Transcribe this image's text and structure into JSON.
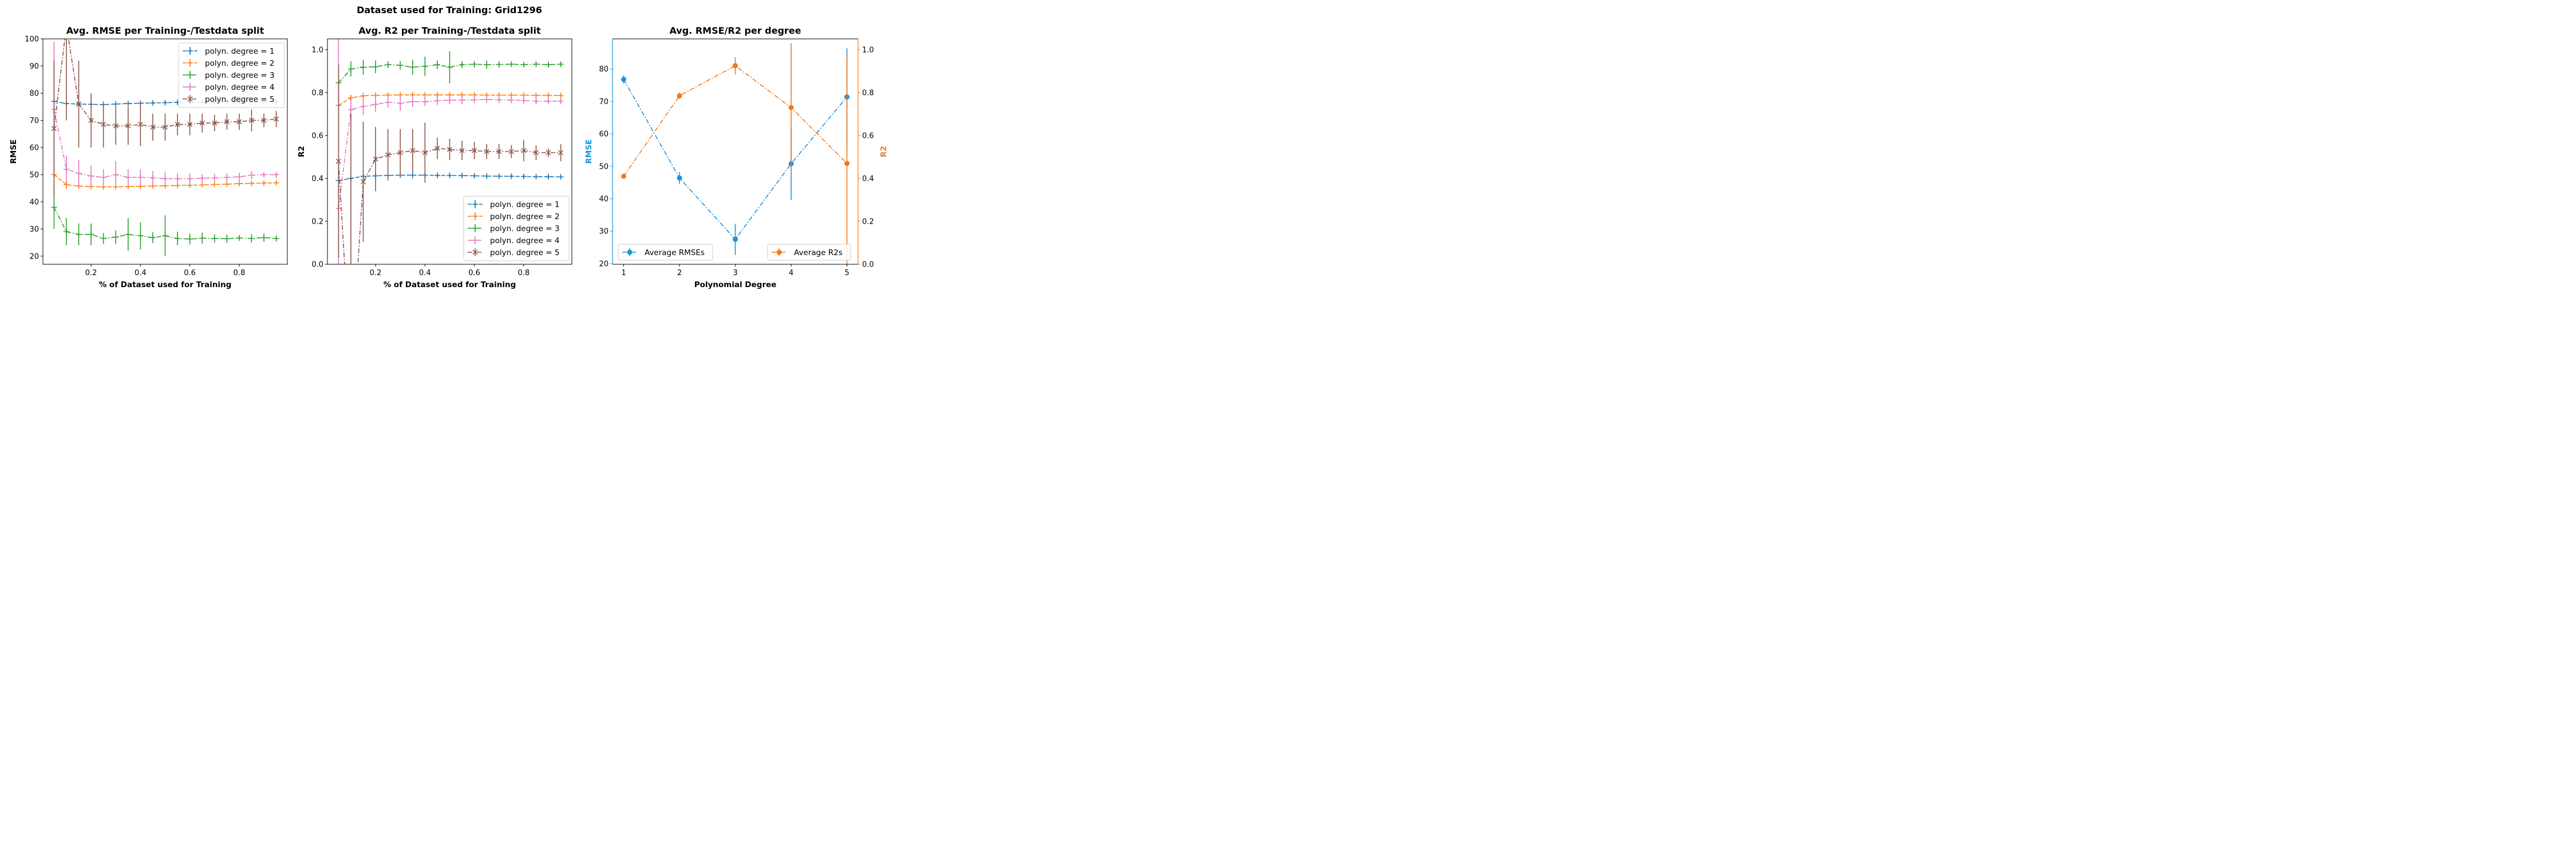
{
  "suptitle": "Dataset used for Training: Grid1296",
  "colors": {
    "degree1": "#1f77b4",
    "degree2": "#ff7f0e",
    "degree3": "#2ca02c",
    "degree4": "#e377c2",
    "degree5": "#8c564b",
    "rmse_axis": "#1c92e0",
    "r2_axis": "#f07a1a"
  },
  "chart_data": [
    {
      "type": "line",
      "title": "Avg. RMSE per Training-/Testdata split",
      "xlabel": "% of Dataset used for Training",
      "ylabel": "RMSE",
      "xlim": [
        0.005,
        0.995
      ],
      "ylim": [
        17,
        100
      ],
      "xticks": [
        0.2,
        0.4,
        0.6,
        0.8
      ],
      "xtick_labels": [
        "0.2",
        "0.4",
        "0.6",
        "0.8"
      ],
      "yticks": [
        20,
        30,
        40,
        50,
        60,
        70,
        80,
        90,
        100
      ],
      "ytick_labels": [
        "20",
        "30",
        "40",
        "50",
        "60",
        "70",
        "80",
        "90",
        "100"
      ],
      "legend_position": "top-right",
      "x": [
        0.05,
        0.1,
        0.15,
        0.2,
        0.25,
        0.3,
        0.35,
        0.4,
        0.45,
        0.5,
        0.55,
        0.6,
        0.65,
        0.7,
        0.75,
        0.8,
        0.85,
        0.9,
        0.95
      ],
      "series": [
        {
          "name": "polyn. degree = 1",
          "marker": "plus",
          "linestyle": "dashed",
          "values": [
            77,
            76.2,
            76,
            75.9,
            75.8,
            76,
            76.2,
            76.3,
            76.4,
            76.5,
            76.6,
            76.6,
            76.7,
            76.7,
            76.8,
            76.8,
            76.8,
            76.8,
            76.8
          ],
          "errors": [
            0.5,
            0.5,
            0.5,
            0.5,
            0.5,
            0.5,
            0.5,
            0.5,
            0.5,
            0.5,
            0.5,
            0.5,
            0.5,
            0.5,
            0.5,
            0.5,
            0.5,
            0.5,
            0.5
          ]
        },
        {
          "name": "polyn. degree = 2",
          "marker": "plus",
          "linestyle": "dashed",
          "values": [
            50,
            46.3,
            45.8,
            45.6,
            45.5,
            45.5,
            45.6,
            45.7,
            45.8,
            45.9,
            46,
            46.1,
            46.2,
            46.4,
            46.5,
            46.7,
            46.8,
            46.9,
            47
          ],
          "errors": [
            1,
            1.5,
            1,
            0.7,
            0.6,
            0.5,
            0.5,
            0.5,
            0.5,
            0.5,
            0.5,
            0.5,
            0.5,
            0.5,
            0.5,
            0.5,
            0.5,
            0.5,
            0.5
          ]
        },
        {
          "name": "polyn. degree = 3",
          "marker": "plus",
          "linestyle": "dashdot",
          "values": [
            38,
            29,
            28,
            28,
            26.5,
            27,
            28,
            27.5,
            26.8,
            27.5,
            26.5,
            26.3,
            26.6,
            26.5,
            26.4,
            26.7,
            26.5,
            26.8,
            26.5
          ],
          "errors": [
            8,
            5,
            4,
            4,
            2,
            2.5,
            6,
            5,
            2,
            7.5,
            2.5,
            2,
            2,
            1.5,
            1.5,
            1,
            1.5,
            1.5,
            1
          ]
        },
        {
          "name": "polyn. degree = 4",
          "marker": "plus",
          "linestyle": "dashdot",
          "values": [
            74,
            52,
            50.5,
            49.5,
            49,
            50,
            49,
            49,
            48.8,
            48.5,
            48.5,
            48.5,
            48.7,
            48.8,
            49,
            49.2,
            49.8,
            50,
            50
          ],
          "errors": [
            25,
            5,
            5,
            4,
            3,
            5,
            3,
            3,
            2.5,
            2.5,
            2,
            2,
            1.5,
            1.5,
            1.5,
            1.5,
            1.5,
            1,
            1
          ]
        },
        {
          "name": "polyn. degree = 5",
          "marker": "x",
          "linestyle": "dashdot",
          "values": [
            67,
            105,
            76,
            70,
            68.5,
            68,
            68,
            68.5,
            67.5,
            67.5,
            68.5,
            68.5,
            69,
            69,
            69.5,
            69.5,
            70,
            70,
            70.5
          ],
          "errors": [
            25,
            35,
            16,
            10,
            8.5,
            7,
            7,
            8,
            5,
            5,
            4,
            4,
            3.5,
            3,
            3,
            3,
            4,
            2.5,
            3
          ]
        }
      ]
    },
    {
      "type": "line",
      "title": "Avg. R2 per Training-/Testdata split",
      "xlabel": "% of Dataset used for Training",
      "ylabel": "R2",
      "xlim": [
        0.005,
        0.995
      ],
      "ylim": [
        0,
        1.05
      ],
      "xticks": [
        0.2,
        0.4,
        0.6,
        0.8
      ],
      "xtick_labels": [
        "0.2",
        "0.4",
        "0.6",
        "0.8"
      ],
      "yticks": [
        0,
        0.2,
        0.4,
        0.6,
        0.8,
        1.0
      ],
      "ytick_labels": [
        "0.0",
        "0.2",
        "0.4",
        "0.6",
        "0.8",
        "1.0"
      ],
      "legend_position": "bottom-right",
      "x": [
        0.05,
        0.1,
        0.15,
        0.2,
        0.25,
        0.3,
        0.35,
        0.4,
        0.45,
        0.5,
        0.55,
        0.6,
        0.65,
        0.7,
        0.75,
        0.8,
        0.85,
        0.9,
        0.95
      ],
      "series": [
        {
          "name": "polyn. degree = 1",
          "marker": "plus",
          "linestyle": "dashed",
          "values": [
            0.39,
            0.4,
            0.41,
            0.412,
            0.414,
            0.415,
            0.415,
            0.415,
            0.414,
            0.414,
            0.413,
            0.412,
            0.411,
            0.41,
            0.41,
            0.409,
            0.408,
            0.408,
            0.407
          ],
          "errors": [
            0.01,
            0.01,
            0.01,
            0.01,
            0.01,
            0.01,
            0.015,
            0.01,
            0.01,
            0.01,
            0.01,
            0.01,
            0.01,
            0.01,
            0.01,
            0.01,
            0.01,
            0.01,
            0.01
          ]
        },
        {
          "name": "polyn. degree = 2",
          "marker": "plus",
          "linestyle": "dashed",
          "values": [
            0.74,
            0.775,
            0.785,
            0.787,
            0.788,
            0.789,
            0.789,
            0.789,
            0.789,
            0.789,
            0.789,
            0.789,
            0.788,
            0.788,
            0.788,
            0.788,
            0.787,
            0.787,
            0.786
          ],
          "errors": [
            0.01,
            0.015,
            0.01,
            0.01,
            0.01,
            0.01,
            0.01,
            0.01,
            0.01,
            0.01,
            0.01,
            0.01,
            0.01,
            0.01,
            0.01,
            0.01,
            0.01,
            0.01,
            0.01
          ]
        },
        {
          "name": "polyn. degree = 3",
          "marker": "plus",
          "linestyle": "dashdot",
          "values": [
            0.845,
            0.91,
            0.918,
            0.92,
            0.93,
            0.927,
            0.918,
            0.922,
            0.93,
            0.918,
            0.93,
            0.932,
            0.93,
            0.931,
            0.932,
            0.93,
            0.932,
            0.93,
            0.932
          ],
          "errors": [
            0.02,
            0.035,
            0.035,
            0.03,
            0.015,
            0.02,
            0.035,
            0.045,
            0.02,
            0.075,
            0.015,
            0.015,
            0.02,
            0.015,
            0.01,
            0.012,
            0.01,
            0.012,
            0.01
          ]
        },
        {
          "name": "polyn. degree = 4",
          "marker": "plus",
          "linestyle": "dashdot",
          "values": [
            0.26,
            0.72,
            0.735,
            0.745,
            0.755,
            0.75,
            0.758,
            0.757,
            0.762,
            0.765,
            0.765,
            0.766,
            0.768,
            0.766,
            0.765,
            0.763,
            0.76,
            0.76,
            0.76
          ],
          "errors": [
            0.8,
            0.05,
            0.04,
            0.035,
            0.025,
            0.035,
            0.025,
            0.02,
            0.02,
            0.02,
            0.02,
            0.015,
            0.015,
            0.015,
            0.015,
            0.015,
            0.015,
            0.012,
            0.01
          ]
        },
        {
          "name": "polyn. degree = 5",
          "marker": "x",
          "linestyle": "dashdot",
          "values": [
            0.48,
            -0.5,
            0.385,
            0.49,
            0.51,
            0.52,
            0.53,
            0.52,
            0.54,
            0.535,
            0.53,
            0.53,
            0.525,
            0.525,
            0.525,
            0.53,
            0.52,
            0.52,
            0.52
          ],
          "errors": [
            0.45,
            1.2,
            0.28,
            0.15,
            0.12,
            0.11,
            0.1,
            0.14,
            0.05,
            0.05,
            0.045,
            0.04,
            0.035,
            0.035,
            0.03,
            0.05,
            0.035,
            0.02,
            0.04
          ]
        }
      ]
    },
    {
      "type": "line",
      "title": "Avg. RMSE/R2 per degree",
      "xlabel": "Polynomial Degree",
      "ylabel": "RMSE",
      "ylabel_right": "R2",
      "xlim": [
        0.8,
        5.2
      ],
      "ylim": [
        19.8,
        89.3
      ],
      "ylim_right": [
        0,
        1.05
      ],
      "xticks": [
        1,
        2,
        3,
        4,
        5
      ],
      "xtick_labels": [
        "1",
        "2",
        "3",
        "4",
        "5"
      ],
      "yticks": [
        20,
        30,
        40,
        50,
        60,
        70,
        80
      ],
      "ytick_labels": [
        "20",
        "30",
        "40",
        "50",
        "60",
        "70",
        "80"
      ],
      "yticks_right": [
        0,
        0.2,
        0.4,
        0.6,
        0.8,
        1.0
      ],
      "ytick_labels_right": [
        "0.0",
        "0.2",
        "0.4",
        "0.6",
        "0.8",
        "1.0"
      ],
      "x": [
        1,
        2,
        3,
        4,
        5
      ],
      "series": [
        {
          "name": "Average RMSEs",
          "axis": "left",
          "marker": "circle",
          "linestyle": "dashdot",
          "legend_position": "bottom-left",
          "values": [
            76.8,
            46.4,
            27.5,
            50.8,
            71.4
          ],
          "errors": [
            1.3,
            1.8,
            4.8,
            11.2,
            15
          ]
        },
        {
          "name": "Average R2s",
          "axis": "right",
          "marker": "circle",
          "linestyle": "dashdot",
          "legend_position": "bottom-right",
          "values": [
            0.41,
            0.785,
            0.925,
            0.73,
            0.47
          ],
          "errors": [
            0.01,
            0.015,
            0.04,
            0.3,
            0.5
          ]
        }
      ]
    }
  ]
}
